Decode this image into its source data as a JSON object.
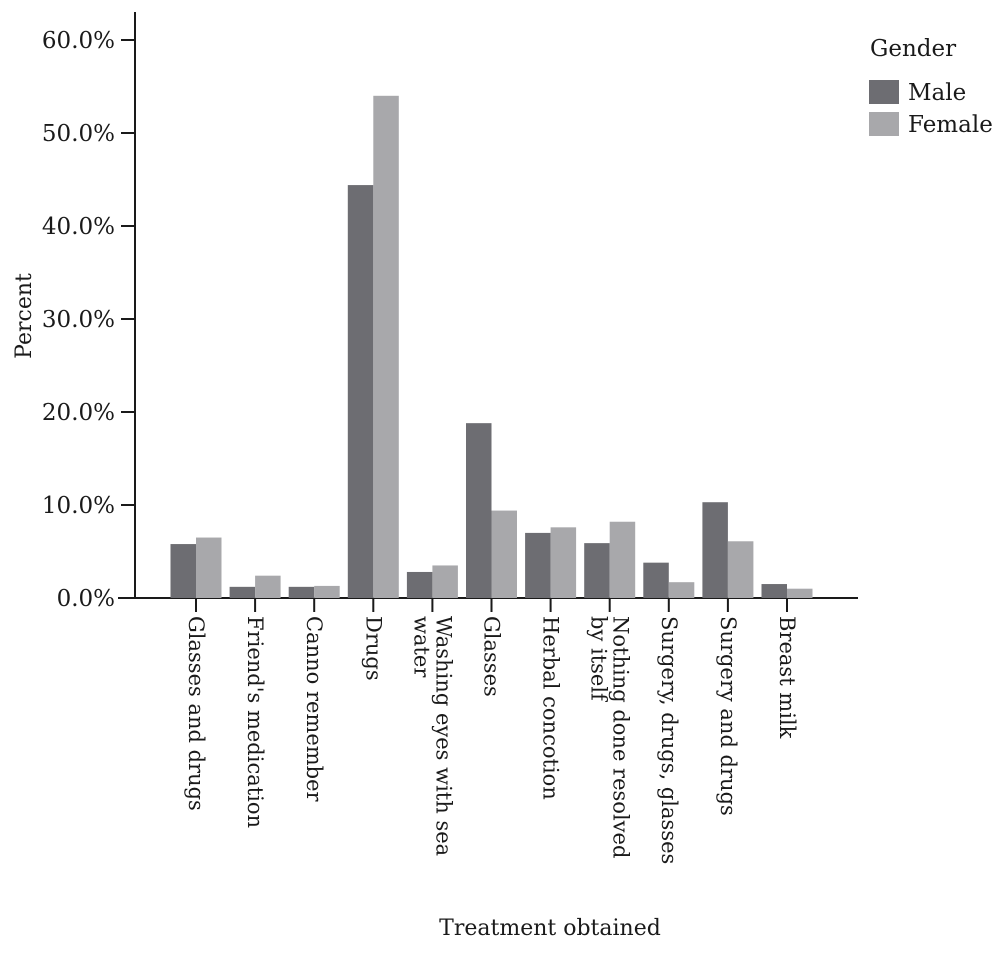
{
  "chart_data": {
    "type": "bar",
    "xlabel": "Treatment obtained",
    "ylabel": "Percent",
    "ylim": [
      0,
      60
    ],
    "y_ticks": [
      0,
      10,
      20,
      30,
      40,
      50,
      60
    ],
    "y_tick_labels": [
      "0.0%",
      "10.0%",
      "20.0%",
      "30.0%",
      "40.0%",
      "50.0%",
      "60.0%"
    ],
    "categories": [
      [
        "Glasses and drugs"
      ],
      [
        "Friend's medication"
      ],
      [
        "Canno remember"
      ],
      [
        "Drugs"
      ],
      [
        "Washing eyes with sea",
        "water"
      ],
      [
        "Glasses"
      ],
      [
        "Herbal concotion"
      ],
      [
        "Nothing done resolved",
        "by itself"
      ],
      [
        "Surgery, drugs, glasses"
      ],
      [
        "Surgery and drugs"
      ],
      [
        "Breast milk"
      ]
    ],
    "series": [
      {
        "name": "Male",
        "color": "#6d6d72",
        "values": [
          5.8,
          1.2,
          1.2,
          44.4,
          2.8,
          18.8,
          7.0,
          5.9,
          3.8,
          10.3,
          1.5
        ]
      },
      {
        "name": "Female",
        "color": "#a8a8ab",
        "values": [
          6.5,
          2.4,
          1.3,
          54.0,
          3.5,
          9.4,
          7.6,
          8.2,
          1.7,
          6.1,
          1.0
        ]
      }
    ],
    "legend": {
      "title": "Gender",
      "placement": "top-right"
    },
    "grid": false
  }
}
